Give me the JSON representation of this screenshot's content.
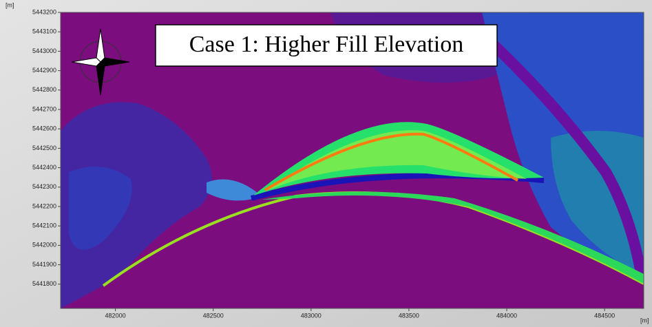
{
  "chart_data": {
    "type": "map",
    "title": "Case 1: Higher Fill Elevation",
    "x_label": "[m]",
    "y_label": "[m]",
    "xlim": [
      481720,
      484700
    ],
    "ylim": [
      5441675,
      5443200
    ],
    "xticks": [
      482000,
      482500,
      483000,
      483500,
      484000,
      484500
    ],
    "yticks": [
      5441800,
      5441900,
      5442000,
      5442100,
      5442200,
      5442300,
      5442400,
      5442500,
      5442600,
      5442700,
      5442800,
      5442900,
      5443000,
      5443100,
      5443200
    ]
  }
}
